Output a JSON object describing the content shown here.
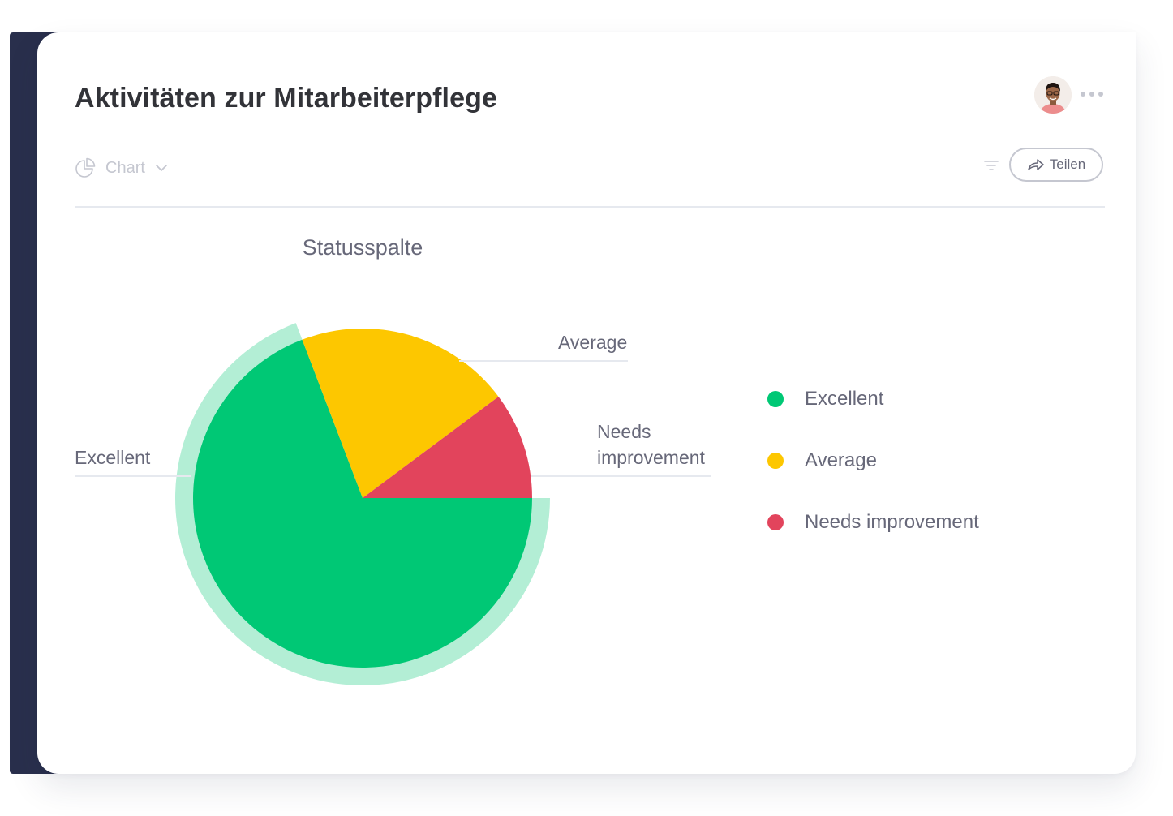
{
  "board": {
    "title": "Aktivitäten zur Mitarbeiterpflege"
  },
  "toolbar": {
    "view_label": "Chart",
    "share_label": "Teilen"
  },
  "colors": {
    "excellent": "#00c875",
    "average": "#fdc700",
    "needs_improvement": "#e2445c",
    "highlight_ring": "#b3eed5",
    "sidebar": "#292f4c"
  },
  "chart_data": {
    "type": "pie",
    "title": "Statusspalte",
    "slices": [
      {
        "label": "Excellent",
        "value": 69.2,
        "color": "#00c875",
        "highlighted": true
      },
      {
        "label": "Average",
        "value": 20.6,
        "color": "#fdc700",
        "highlighted": false
      },
      {
        "label": "Needs improvement",
        "value": 10.2,
        "color": "#e2445c",
        "highlighted": false
      }
    ],
    "legend": [
      "Excellent",
      "Average",
      "Needs improvement"
    ],
    "legend_position": "right",
    "slice_labels": [
      "Excellent",
      "Average",
      "Needs improvement"
    ]
  }
}
